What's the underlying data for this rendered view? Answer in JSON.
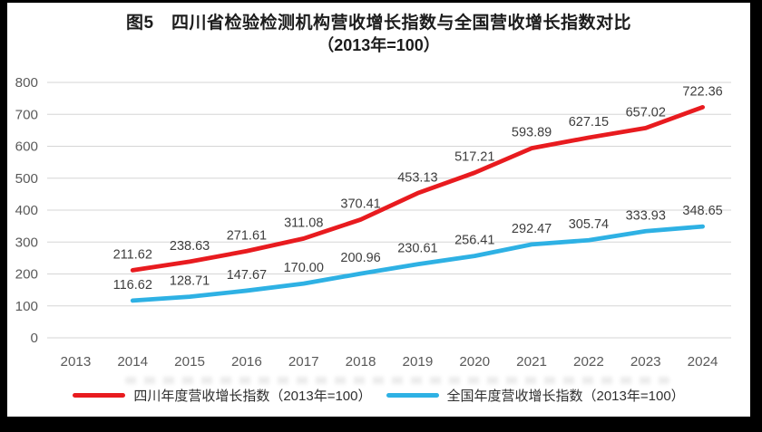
{
  "frame": {
    "border_color": "#000000"
  },
  "title": {
    "line1": "图5　四川省检验检测机构营收增长指数与全国营收增长指数对比",
    "line2": "（2013年=100）"
  },
  "chart_data": {
    "type": "line",
    "categories": [
      "2013",
      "2014",
      "2015",
      "2016",
      "2017",
      "2018",
      "2019",
      "2020",
      "2021",
      "2022",
      "2023",
      "2024"
    ],
    "series": [
      {
        "id": "sichuan",
        "name": "四川年度营收增长指数（2013年=100）",
        "color": "#e81b1f",
        "values": [
          null,
          211.62,
          238.63,
          271.61,
          311.08,
          370.41,
          453.13,
          517.21,
          593.89,
          627.15,
          657.02,
          722.36
        ]
      },
      {
        "id": "national",
        "name": "全国年度营收增长指数（2013年=100）",
        "color": "#2eb1e4",
        "values": [
          null,
          116.62,
          128.71,
          147.67,
          170.0,
          200.96,
          230.61,
          256.41,
          292.47,
          305.74,
          333.93,
          348.65
        ]
      }
    ],
    "title": "图5　四川省检验检测机构营收增长指数与全国营收增长指数对比（2013年=100）",
    "xlabel": "",
    "ylabel": "",
    "ylim": [
      0,
      800
    ],
    "ytick_interval": 100,
    "yticks": [
      "0",
      "100",
      "200",
      "300",
      "400",
      "500",
      "600",
      "700",
      "800"
    ],
    "grid": true,
    "legend_position": "bottom",
    "gridline_color": "#d6d6d6",
    "axis_label_color": "#595959",
    "data_label_color": "#3d3d3d"
  }
}
